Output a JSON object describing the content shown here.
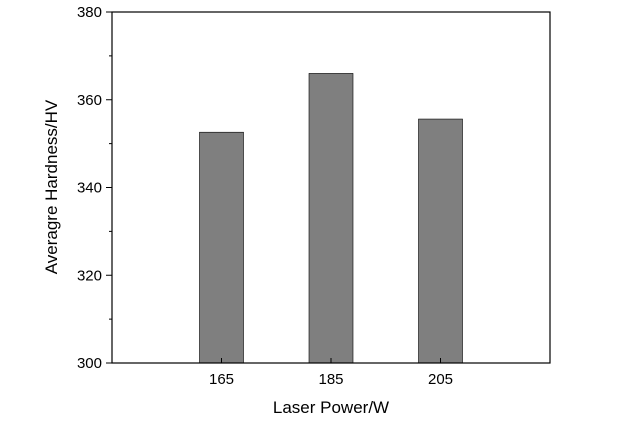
{
  "chart_data": {
    "type": "bar",
    "categories": [
      "165",
      "185",
      "205"
    ],
    "values": [
      352.6,
      366.0,
      355.6
    ],
    "title": "",
    "xlabel": "Laser Power/W",
    "ylabel": "Averagre Hardness/HV",
    "ylim": [
      300,
      380
    ],
    "y_ticks": [
      "300",
      "320",
      "340",
      "360",
      "380"
    ],
    "grid": false,
    "legend": "none",
    "bar_color": "#7f7f7f",
    "axis_color": "#000000"
  }
}
